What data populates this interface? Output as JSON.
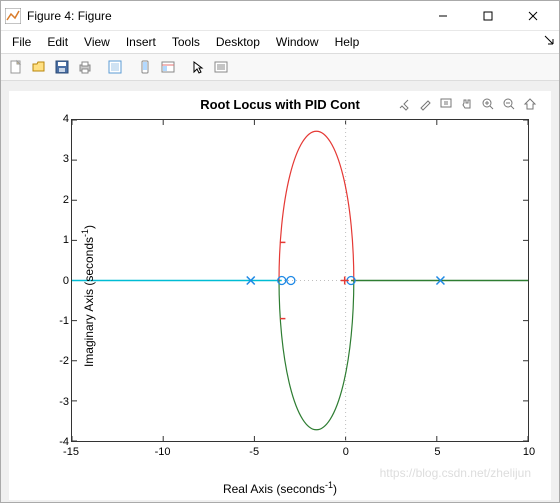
{
  "window": {
    "title": "Figure 4: Figure"
  },
  "menu": {
    "items": [
      "File",
      "Edit",
      "View",
      "Insert",
      "Tools",
      "Desktop",
      "Window",
      "Help"
    ]
  },
  "toolbar": {
    "icons": [
      "new",
      "open",
      "save",
      "print",
      "",
      "link",
      "",
      "rect",
      "props",
      "",
      "cursor",
      "inspect"
    ]
  },
  "chart": {
    "title": "Root Locus with PID Cont",
    "xlabel_pre": "Real Axis (seconds",
    "xlabel_sup": "-1",
    "xlabel_post": ")",
    "ylabel_pre": "Imaginary Axis (seconds",
    "ylabel_sup": "-1",
    "ylabel_post": ")",
    "xlim": [
      -15,
      10
    ],
    "ylim": [
      -4,
      4
    ],
    "xticks": [
      -15,
      -10,
      -5,
      0,
      5,
      10
    ],
    "yticks": [
      -4,
      -3,
      -2,
      -1,
      0,
      1,
      2,
      3,
      4
    ],
    "background": "#ffffff",
    "grid_color": "#cccccc",
    "axis_color": "#333333",
    "zero_line_color": "#bfbfbf",
    "series": {
      "cyan_line": {
        "color": "#00bcd4",
        "y": 0,
        "x1": -15,
        "x2": -3.5
      },
      "red_branch": {
        "color": "#e53935",
        "cx": -1.6,
        "cy": 0,
        "rx": 2.05,
        "ry": 3.72,
        "x_offset": -3.5,
        "x_offset_end": 0.3,
        "breakin_marks_y": [
          0.95,
          -0.95
        ]
      },
      "green_branch": {
        "color": "#2e7d32",
        "right_x1": 0.3,
        "right_x2": 10
      },
      "poles_x": {
        "color": "#1e88e5",
        "marker": "x",
        "points": [
          [
            -5.2,
            0
          ],
          [
            5.2,
            0
          ]
        ]
      },
      "zeros_o": {
        "color": "#1e88e5",
        "marker": "o",
        "points": [
          [
            -3.5,
            0
          ],
          [
            -3.0,
            0
          ],
          [
            0.3,
            0
          ]
        ]
      },
      "red_plus": {
        "color": "#e53935",
        "marker": "+",
        "points": [
          [
            -0.05,
            0
          ]
        ]
      }
    },
    "tick_fontsize": 11,
    "label_fontsize": 12,
    "title_fontsize": 13
  },
  "axes_toolbar": {
    "icons": [
      "brush",
      "edit",
      "box",
      "pan",
      "zoomin",
      "zoomout",
      "home"
    ]
  },
  "watermark": "https://blog.csdn.net/zhelijun"
}
